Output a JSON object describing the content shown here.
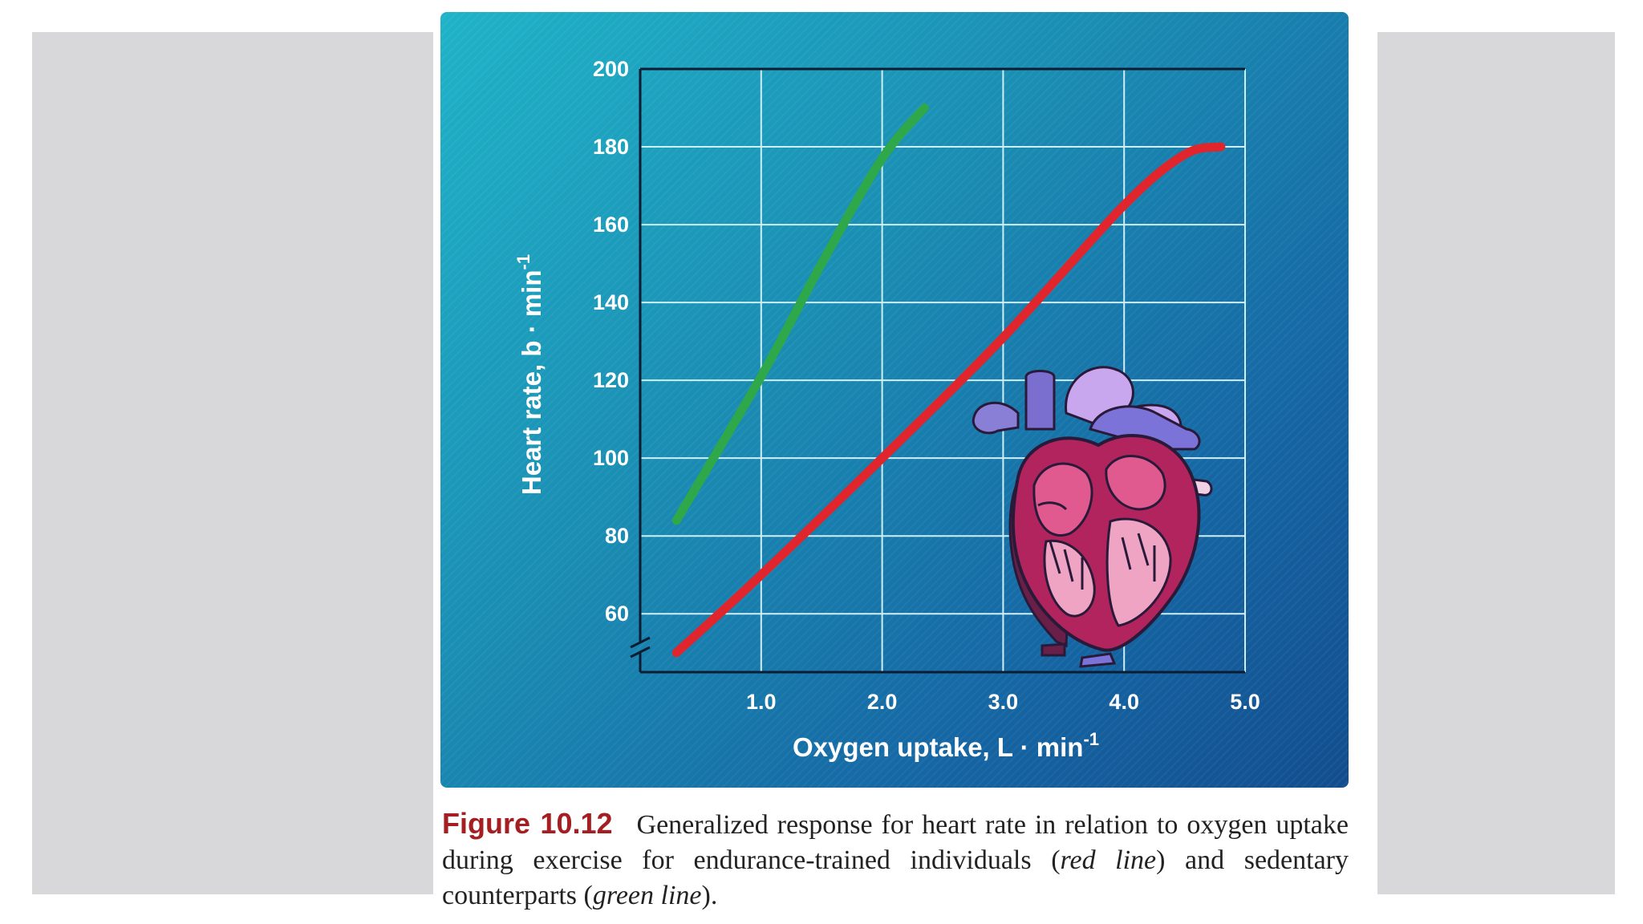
{
  "chart_data": {
    "type": "line",
    "title": "",
    "xlabel": "Oxygen uptake, L · min",
    "xlabel_sup": "-1",
    "ylabel": "Heart rate, b · min",
    "ylabel_sup": "-1",
    "xlim": [
      0,
      5.0
    ],
    "ylim": [
      45,
      200
    ],
    "x_ticks": [
      1.0,
      2.0,
      3.0,
      4.0,
      5.0
    ],
    "x_tick_labels": [
      "1.0",
      "2.0",
      "3.0",
      "4.0",
      "5.0"
    ],
    "y_ticks": [
      60,
      80,
      100,
      120,
      140,
      160,
      180,
      200
    ],
    "y_tick_labels": [
      "60",
      "80",
      "100",
      "120",
      "140",
      "160",
      "180",
      "200"
    ],
    "grid": true,
    "axis_break": "y",
    "series": [
      {
        "name": "Sedentary (green line)",
        "color": "#2fa84a",
        "x": [
          0.3,
          1.0,
          1.5,
          2.0,
          2.35
        ],
        "y": [
          84,
          121,
          150,
          177,
          190
        ]
      },
      {
        "name": "Endurance-trained (red line)",
        "color": "#e0252c",
        "x": [
          0.3,
          1.0,
          2.0,
          3.0,
          4.0,
          4.5,
          4.8
        ],
        "y": [
          50,
          70,
          100,
          131,
          165,
          178,
          180
        ]
      }
    ]
  },
  "illustration": {
    "icon": "heart-anatomy-icon"
  },
  "caption": {
    "label": "Figure 10.12",
    "text_before": "Generalized response for heart rate in relation to oxygen uptake during exercise for endurance-trained individuals (",
    "red_term": "red line",
    "text_middle": ") and sedentary counterparts (",
    "green_term": "green line",
    "text_after": ")."
  }
}
